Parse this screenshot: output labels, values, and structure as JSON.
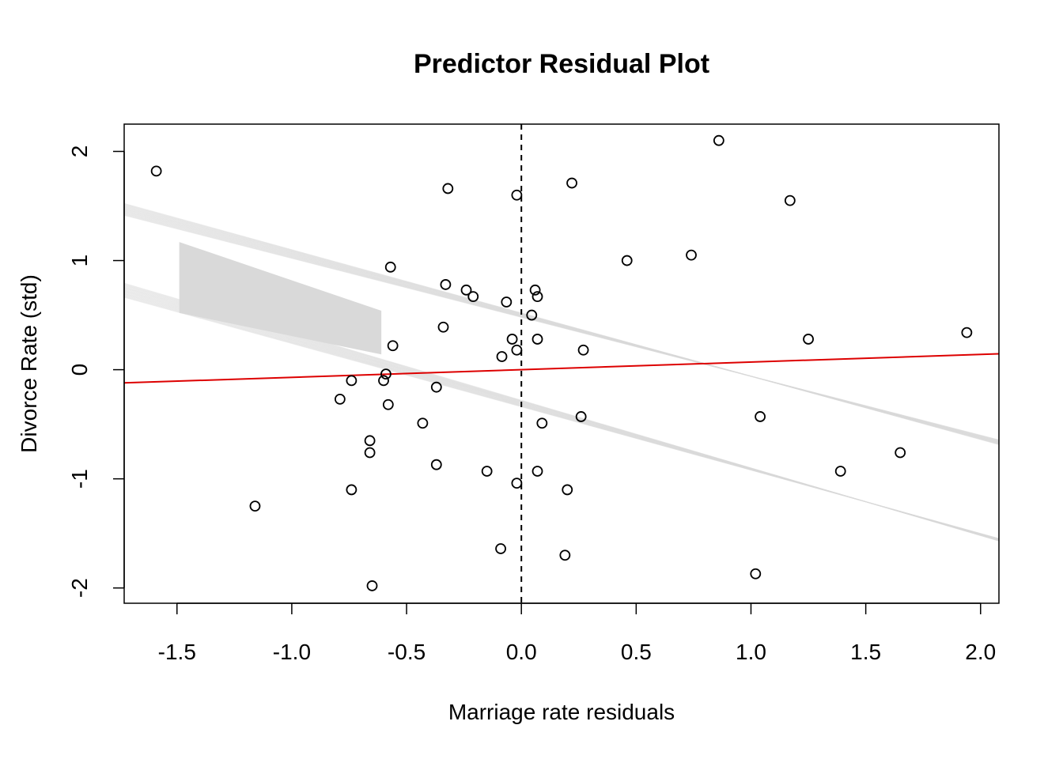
{
  "chart_data": {
    "type": "scatter",
    "title": "Predictor Residual Plot",
    "xlabel": "Marriage rate residuals",
    "ylabel": "Divorce Rate (std)",
    "xlim": [
      -1.73,
      2.08
    ],
    "ylim": [
      -2.14,
      2.25
    ],
    "x_ticks": [
      -1.5,
      -1.0,
      -0.5,
      0.0,
      0.5,
      1.0,
      1.5,
      2.0
    ],
    "x_tick_labels": [
      "-1.5",
      "-1.0",
      "-0.5",
      "0.0",
      "0.5",
      "1.0",
      "1.5",
      "2.0"
    ],
    "y_ticks": [
      -2,
      -1,
      0,
      1,
      2
    ],
    "y_tick_labels": [
      "-2",
      "-1",
      "0",
      "1",
      "2"
    ],
    "grid": false,
    "reference_line": {
      "x": 0,
      "style": "dashed",
      "color": "#000000"
    },
    "regression_line": {
      "intercept": 0.0,
      "slope": 0.07,
      "color": "#dd0000"
    },
    "sample_lines": {
      "color": "#d9d9d9",
      "bundles": [
        {
          "slope_range": [
            -0.58,
            -0.54
          ],
          "intercept_range": [
            0.48,
            0.52
          ],
          "count": 24
        },
        {
          "slope_range": [
            -0.62,
            -0.58
          ],
          "intercept_range": [
            -0.34,
            -0.28
          ],
          "count": 24
        }
      ],
      "shaded_region": {
        "x_range": [
          -1.49,
          -0.61
        ],
        "y_top_at_x_start": 1.17,
        "y_bottom_at_x_start": 0.52,
        "y_top_at_x_end": 0.54,
        "y_bottom_at_x_end": 0.14
      }
    },
    "points": [
      [
        -1.59,
        1.82
      ],
      [
        -1.16,
        -1.25
      ],
      [
        -0.79,
        -0.27
      ],
      [
        -0.74,
        -0.1
      ],
      [
        -0.74,
        -1.1
      ],
      [
        -0.66,
        -0.65
      ],
      [
        -0.66,
        -0.76
      ],
      [
        -0.65,
        -1.98
      ],
      [
        -0.6,
        -0.1
      ],
      [
        -0.59,
        -0.04
      ],
      [
        -0.58,
        -0.32
      ],
      [
        -0.57,
        0.94
      ],
      [
        -0.56,
        0.22
      ],
      [
        -0.43,
        -0.49
      ],
      [
        -0.37,
        -0.16
      ],
      [
        -0.37,
        -0.87
      ],
      [
        -0.34,
        0.39
      ],
      [
        -0.33,
        0.78
      ],
      [
        -0.32,
        1.66
      ],
      [
        -0.24,
        0.73
      ],
      [
        -0.21,
        0.67
      ],
      [
        -0.15,
        -0.93
      ],
      [
        -0.09,
        -1.64
      ],
      [
        -0.085,
        0.12
      ],
      [
        -0.065,
        0.62
      ],
      [
        -0.04,
        0.28
      ],
      [
        -0.02,
        0.18
      ],
      [
        -0.02,
        -1.04
      ],
      [
        -0.02,
        1.6
      ],
      [
        0.045,
        0.5
      ],
      [
        0.06,
        0.73
      ],
      [
        0.07,
        0.28
      ],
      [
        0.07,
        0.67
      ],
      [
        0.07,
        -0.93
      ],
      [
        0.09,
        -0.49
      ],
      [
        0.19,
        -1.7
      ],
      [
        0.2,
        -1.1
      ],
      [
        0.22,
        1.71
      ],
      [
        0.26,
        -0.43
      ],
      [
        0.27,
        0.18
      ],
      [
        0.46,
        1.0
      ],
      [
        0.74,
        1.05
      ],
      [
        0.86,
        2.1
      ],
      [
        1.02,
        -1.87
      ],
      [
        1.04,
        -0.43
      ],
      [
        1.17,
        1.55
      ],
      [
        1.25,
        0.28
      ],
      [
        1.39,
        -0.93
      ],
      [
        1.65,
        -0.76
      ],
      [
        1.94,
        0.34
      ]
    ]
  }
}
